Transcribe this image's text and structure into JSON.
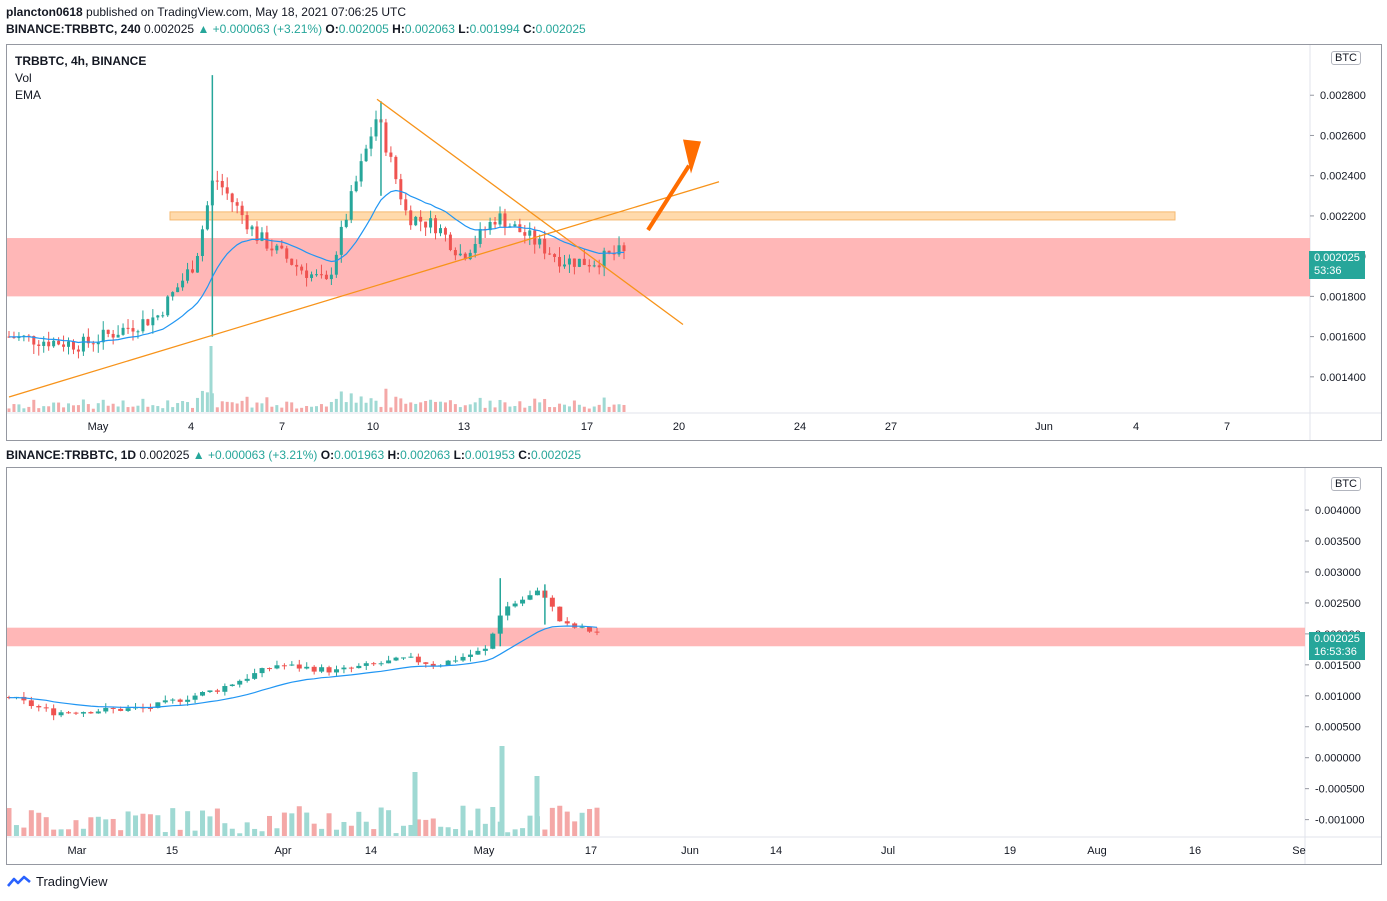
{
  "header": {
    "user": "plancton0618",
    "published": " published on TradingView.com, May 18, 2021 07:06:25 UTC"
  },
  "top_chart": {
    "ohlc_line": {
      "symbol": "BINANCE:TRBBTC, 240",
      "last": "0.002025",
      "change": "▲ +0.000063 (+3.21%)",
      "o_label": "O:",
      "o": "0.002005",
      "h_label": "H:",
      "h": "0.002063",
      "l_label": "L:",
      "l": "0.001994",
      "c_label": "C:",
      "c": "0.002025"
    },
    "legend": {
      "title": "TRBBTC, 4h, BINANCE",
      "vol": "Vol",
      "ema": "EMA"
    },
    "unit": "BTC",
    "price_tag": "0.002025",
    "countdown": "53:36"
  },
  "bottom_chart": {
    "ohlc_line": {
      "symbol": "BINANCE:TRBBTC, 1D",
      "last": "0.002025",
      "change": "▲ +0.000063 (+3.21%)",
      "o_label": "O:",
      "o": "0.001963",
      "h_label": "H:",
      "h": "0.002063",
      "l_label": "L:",
      "l": "0.001953",
      "c_label": "C:",
      "c": "0.002025"
    },
    "unit": "BTC",
    "price_tag": "0.002025",
    "countdown": "16:53:36"
  },
  "footer": {
    "brand": "TradingView"
  },
  "colors": {
    "up": "#26a69a",
    "down": "#ef5350",
    "ema": "#2196f3",
    "zone_red": "#ffb3b3",
    "zone_orange": "#ffd8a8",
    "trend": "#f7931a",
    "arrow": "#ff6d00"
  },
  "chart_data": [
    {
      "type": "candlestick",
      "title": "TRBBTC, 4h, BINANCE",
      "interval": "4h",
      "x_tick_labels": [
        "May",
        "4",
        "7",
        "10",
        "13",
        "17",
        "20",
        "24",
        "27",
        "Jun",
        "4",
        "7"
      ],
      "y_tick_labels": [
        "0.001400",
        "0.001600",
        "0.001800",
        "0.002000",
        "0.002200",
        "0.002400",
        "0.002600",
        "0.002800"
      ],
      "ylim": [
        0.00125,
        0.003
      ],
      "grid": false,
      "legend_position": "top-left",
      "indicators": [
        "Vol",
        "EMA"
      ],
      "zones": [
        {
          "type": "resistance",
          "color": "#ffd8a8",
          "y": [
            0.00218,
            0.00222
          ]
        },
        {
          "type": "support",
          "color": "#ffb3b3",
          "y": [
            0.0018,
            0.00209
          ]
        }
      ],
      "series": [
        {
          "name": "Close",
          "key_points": [
            {
              "x": "Apr 27",
              "y": 0.0016
            },
            {
              "x": "May 1",
              "y": 0.00156
            },
            {
              "x": "May 3",
              "y": 0.0017
            },
            {
              "x": "May 4",
              "y": 0.00197
            },
            {
              "x": "May 5",
              "y": 0.0024
            },
            {
              "x": "May 6",
              "y": 0.0021
            },
            {
              "x": "May 7",
              "y": 0.00195
            },
            {
              "x": "May 8",
              "y": 0.00186
            },
            {
              "x": "May 9",
              "y": 0.0023
            },
            {
              "x": "May 10",
              "y": 0.0027
            },
            {
              "x": "May 11",
              "y": 0.0022
            },
            {
              "x": "May 12",
              "y": 0.00215
            },
            {
              "x": "May 13",
              "y": 0.002
            },
            {
              "x": "May 14",
              "y": 0.0022
            },
            {
              "x": "May 15",
              "y": 0.0021
            },
            {
              "x": "May 16",
              "y": 0.00198
            },
            {
              "x": "May 17",
              "y": 0.00197
            },
            {
              "x": "May 18",
              "y": 0.002025
            }
          ]
        }
      ],
      "last_price": 0.002025
    },
    {
      "type": "candlestick",
      "interval": "1D",
      "x_tick_labels": [
        "Mar",
        "15",
        "Apr",
        "14",
        "May",
        "17",
        "Jun",
        "14",
        "Jul",
        "19",
        "Aug",
        "16",
        "Se"
      ],
      "y_tick_labels": [
        "0.004000",
        "0.003500",
        "0.003000",
        "0.002500",
        "0.002000",
        "0.001500",
        "0.001000",
        "0.000500",
        "0.000000",
        "-0.000500",
        "-0.001000"
      ],
      "ylim": [
        -0.0012,
        0.00455
      ],
      "grid": false,
      "zones": [
        {
          "type": "support",
          "color": "#ffb3b3",
          "y": [
            0.0018,
            0.0021
          ]
        }
      ],
      "series": [
        {
          "name": "Close",
          "key_points": [
            {
              "x": "Feb 20",
              "y": 0.00098
            },
            {
              "x": "Mar 1",
              "y": 0.00073
            },
            {
              "x": "Mar 15",
              "y": 0.0008
            },
            {
              "x": "Mar 25",
              "y": 0.0011
            },
            {
              "x": "Apr 1",
              "y": 0.0015
            },
            {
              "x": "Apr 10",
              "y": 0.0014
            },
            {
              "x": "Apr 20",
              "y": 0.0016
            },
            {
              "x": "Apr 27",
              "y": 0.0015
            },
            {
              "x": "May 3",
              "y": 0.00175
            },
            {
              "x": "May 5",
              "y": 0.0024
            },
            {
              "x": "May 10",
              "y": 0.0027
            },
            {
              "x": "May 13",
              "y": 0.00215
            },
            {
              "x": "May 18",
              "y": 0.002025
            }
          ]
        }
      ],
      "last_price": 0.002025
    }
  ]
}
